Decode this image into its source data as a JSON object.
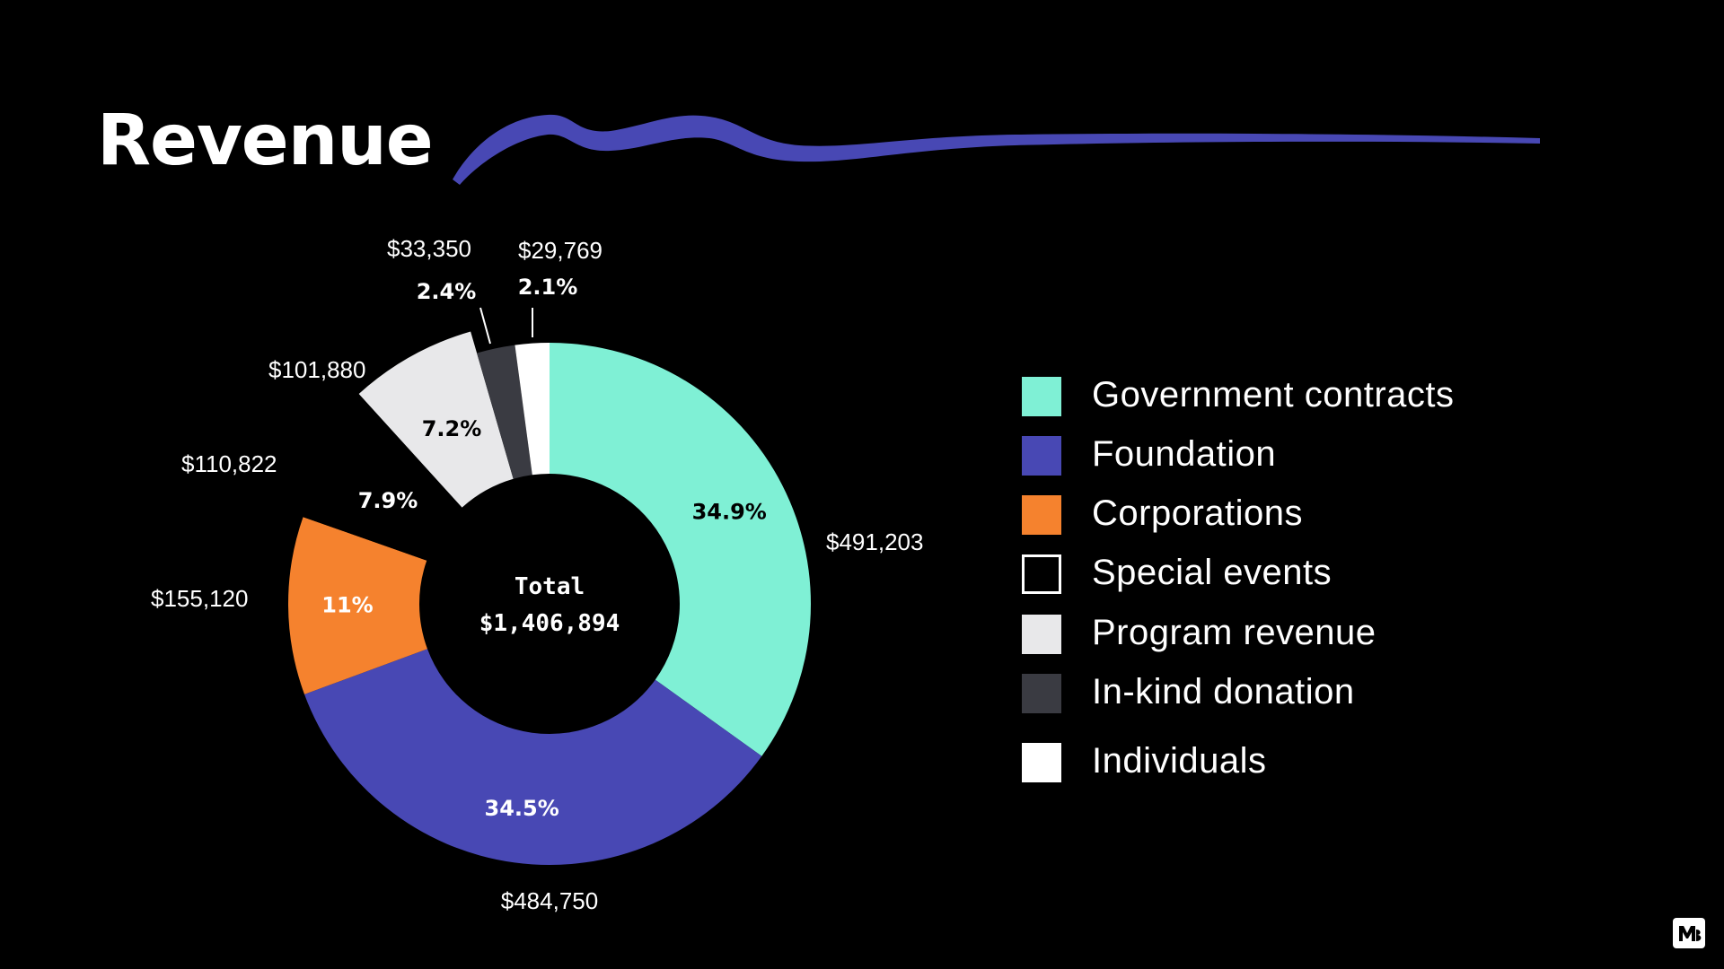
{
  "title": "Revenue",
  "chart_data": {
    "type": "pie",
    "style": "donut",
    "title": "Revenue",
    "center_label": {
      "line1": "Total",
      "line2": "$1,406,894"
    },
    "series": [
      {
        "name": "Government contracts",
        "value": 491203,
        "amount_label": "$491,203",
        "percent_label": "34.9%",
        "percent": 34.9,
        "color": "#7ff0d5"
      },
      {
        "name": "Foundation",
        "value": 484750,
        "amount_label": "$484,750",
        "percent_label": "34.5%",
        "percent": 34.5,
        "color": "#4848b4"
      },
      {
        "name": "Corporations",
        "value": 155120,
        "amount_label": "$155,120",
        "percent_label": "11%",
        "percent": 11.0,
        "color": "#f5822e"
      },
      {
        "name": "Special events",
        "value": 110822,
        "amount_label": "$110,822",
        "percent_label": "7.9%",
        "percent": 7.9,
        "color": "#000000"
      },
      {
        "name": "Program revenue",
        "value": 101880,
        "amount_label": "$101,880",
        "percent_label": "7.2%",
        "percent": 7.2,
        "color": "#e8e8ea"
      },
      {
        "name": "In-kind donation",
        "value": 33350,
        "amount_label": "$33,350",
        "percent_label": "2.4%",
        "percent": 2.4,
        "color": "#3a3b42"
      },
      {
        "name": "Individuals",
        "value": 29769,
        "amount_label": "$29,769",
        "percent_label": "2.1%",
        "percent": 2.1,
        "color": "#ffffff"
      }
    ],
    "legend": {
      "position": "right",
      "items": [
        {
          "label": "Government contracts",
          "color": "#7ff0d5"
        },
        {
          "label": "Foundation",
          "color": "#4848b4"
        },
        {
          "label": "Corporations",
          "color": "#f5822e"
        },
        {
          "label": "Special events",
          "color": "#000000",
          "outlined": true
        },
        {
          "label": "Program revenue",
          "color": "#e8e8ea"
        },
        {
          "label": "In-kind donation",
          "color": "#3a3b42"
        },
        {
          "label": "Individuals",
          "color": "#ffffff"
        }
      ]
    }
  },
  "colors": {
    "background": "#000000",
    "accent_brush": "#4848b4",
    "text": "#ffffff"
  },
  "icons": {
    "brand_logo": "mb-logo-icon"
  }
}
